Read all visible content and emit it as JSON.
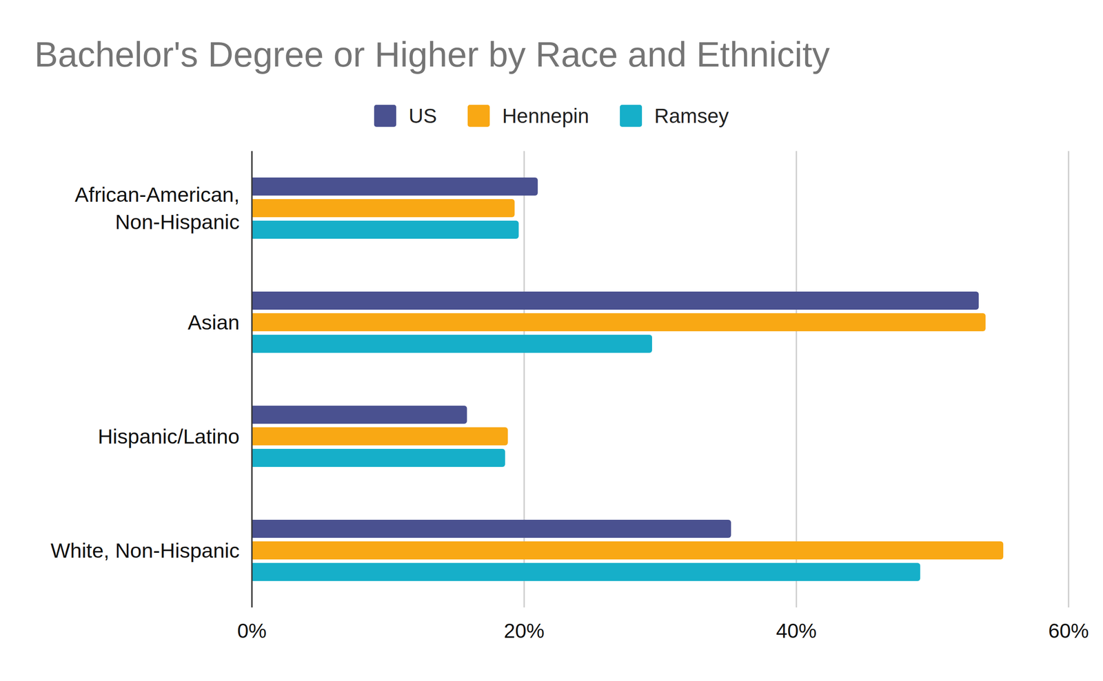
{
  "chart_data": {
    "type": "bar",
    "title": "Bachelor's Degree or Higher by Race and Ethnicity",
    "orientation": "horizontal",
    "categories": [
      "African-American, Non-Hispanic",
      "Asian",
      "Hispanic/Latino",
      "White, Non-Hispanic"
    ],
    "series": [
      {
        "name": "US",
        "color": "#4a5190",
        "values": [
          21.0,
          53.4,
          15.8,
          35.2
        ]
      },
      {
        "name": "Hennepin",
        "color": "#f9a814",
        "values": [
          19.3,
          53.9,
          18.8,
          55.2
        ]
      },
      {
        "name": "Ramsey",
        "color": "#16afc9",
        "values": [
          19.6,
          29.4,
          18.6,
          49.1
        ]
      }
    ],
    "xlim": [
      0,
      60
    ],
    "xticks": [
      {
        "value": 0,
        "label": "0%"
      },
      {
        "value": 20,
        "label": "20%"
      },
      {
        "value": 40,
        "label": "40%"
      },
      {
        "value": 60,
        "label": "60%"
      }
    ],
    "grid": true
  }
}
